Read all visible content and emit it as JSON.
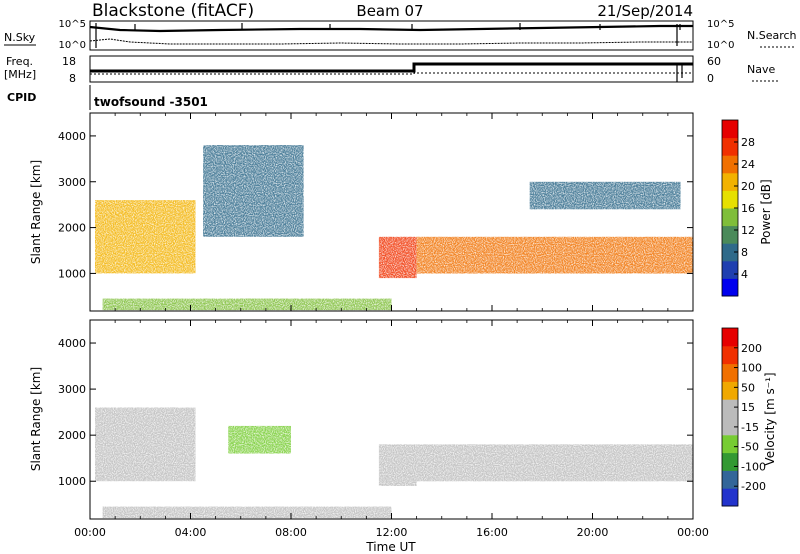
{
  "header": {
    "station": "Blackstone (fitACF)",
    "beam": "Beam 07",
    "date": "21/Sep/2014"
  },
  "top_panels": {
    "nsky_label": "N.Sky",
    "nsky_ticks": [
      "10^5",
      "10^0"
    ],
    "nsearch_label": "N.Search",
    "nsearch_ticks": [
      "10^5",
      "10^0"
    ],
    "freq_label": "Freq.",
    "freq_unit": "[MHz]",
    "freq_ticks": [
      "18",
      "8"
    ],
    "nave_label": "Nave",
    "nave_ticks": [
      "60",
      "0"
    ],
    "cpid_label": "CPID",
    "cpid_value": "twofsound -3501"
  },
  "colors": {
    "power_scale": [
      "#0000ee",
      "#1f3fb0",
      "#2f6a8a",
      "#4a8a5a",
      "#7fbe3a",
      "#e6e000",
      "#f2b200",
      "#f07000",
      "#f03000",
      "#e60000"
    ],
    "velocity_scale": [
      "#2233cc",
      "#336699",
      "#339933",
      "#77cc33",
      "#bbbbbb",
      "#bbbbbb",
      "#f0a800",
      "#f07000",
      "#f03000",
      "#e60000"
    ]
  },
  "chart_data": [
    {
      "type": "heatmap",
      "name": "power",
      "ylabel": "Slant Range [km]",
      "xlabel": "",
      "x_ticks": [
        "00:00",
        "04:00",
        "08:00",
        "12:00",
        "16:00",
        "20:00",
        "00:00"
      ],
      "y_ticks": [
        "1000",
        "2000",
        "3000",
        "4000"
      ],
      "xlim": [
        0,
        24
      ],
      "ylim": [
        180,
        4500
      ],
      "colorbar": {
        "label": "Power [dB]",
        "ticks": [
          "28",
          "24",
          "20",
          "16",
          "12",
          "8",
          "4"
        ],
        "range": [
          0,
          30
        ]
      },
      "regions": [
        {
          "x": [
            0.2,
            4.2
          ],
          "y": [
            1000,
            2600
          ],
          "value": 20
        },
        {
          "x": [
            4.5,
            8.5
          ],
          "y": [
            1800,
            3800
          ],
          "value": 8
        },
        {
          "x": [
            11.5,
            13.0
          ],
          "y": [
            900,
            1800
          ],
          "value": 24
        },
        {
          "x": [
            13.0,
            24.0
          ],
          "y": [
            1000,
            1800
          ],
          "value": 22
        },
        {
          "x": [
            0.5,
            12.0
          ],
          "y": [
            200,
            450
          ],
          "value": 14
        },
        {
          "x": [
            17.5,
            23.5
          ],
          "y": [
            2400,
            3000
          ],
          "value": 6
        }
      ]
    },
    {
      "type": "heatmap",
      "name": "velocity",
      "ylabel": "Slant Range [km]",
      "xlabel": "Time UT",
      "x_ticks": [
        "00:00",
        "04:00",
        "08:00",
        "12:00",
        "16:00",
        "20:00",
        "00:00"
      ],
      "y_ticks": [
        "1000",
        "2000",
        "3000",
        "4000"
      ],
      "xlim": [
        0,
        24
      ],
      "ylim": [
        180,
        4500
      ],
      "colorbar": {
        "label": "Velocity [m s⁻¹]",
        "ticks": [
          "200",
          "100",
          "50",
          "15",
          "-15",
          "-50",
          "-100",
          "-200"
        ],
        "range": [
          -250,
          250
        ]
      },
      "regions": [
        {
          "x": [
            0.2,
            4.2
          ],
          "y": [
            1000,
            2600
          ],
          "value": -30
        },
        {
          "x": [
            5.5,
            8.0
          ],
          "y": [
            1600,
            2200
          ],
          "value": -70
        },
        {
          "x": [
            11.5,
            13.0
          ],
          "y": [
            900,
            1800
          ],
          "value": 40
        },
        {
          "x": [
            13.0,
            24.0
          ],
          "y": [
            1000,
            1800
          ],
          "value": 0
        },
        {
          "x": [
            0.5,
            12.0
          ],
          "y": [
            200,
            450
          ],
          "value": -40
        }
      ]
    }
  ]
}
